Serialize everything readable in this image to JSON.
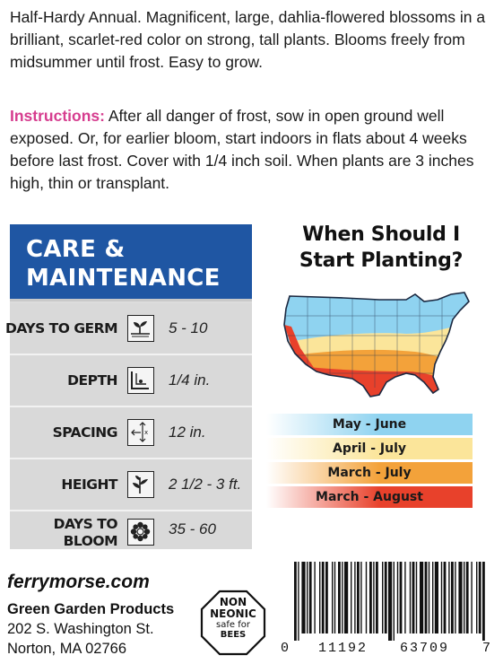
{
  "description": "Half-Hardy Annual. Magnificent, large, dahlia-flowered blossoms in a brilliant, scarlet-red color on strong, tall plants. Blooms freely from midsummer until frost. Easy to grow.",
  "instructions": {
    "label": "Instructions:",
    "text": " After all danger of frost, sow in open ground well exposed. Or, for earlier bloom, start indoors in flats about 4 weeks before last frost. Cover with 1/4 inch soil. When plants are 3 inches high, thin or transplant."
  },
  "care": {
    "title_line1": "CARE &",
    "title_line2": "MAINTENANCE",
    "rows": [
      {
        "label": "DAYS TO GERM",
        "value": "5 - 10",
        "icon": "sprout-icon"
      },
      {
        "label": "DEPTH",
        "value": "1/4 in.",
        "icon": "depth-icon"
      },
      {
        "label": "SPACING",
        "value": "12 in.",
        "icon": "spacing-icon"
      },
      {
        "label": "HEIGHT",
        "value": "2 1/2 - 3 ft.",
        "icon": "plant-height-icon"
      },
      {
        "label_line1": "DAYS TO",
        "label_line2": "BLOOM",
        "value": "35 - 60",
        "icon": "flower-icon"
      }
    ]
  },
  "planting": {
    "title_line1": "When Should I",
    "title_line2": "Start Planting?",
    "zones": [
      {
        "label": "May - June",
        "color": "#8fd3f0"
      },
      {
        "label": "April - July",
        "color": "#fbe59a"
      },
      {
        "label": "March - July",
        "color": "#f3a23a"
      },
      {
        "label": "March - August",
        "color": "#e8412b"
      }
    ]
  },
  "footer": {
    "website": "ferrymorse.com",
    "company_name": "Green Garden Products",
    "address_line1": "202 S. Washington St.",
    "address_line2": "Norton, MA 02766",
    "badge_line1": "NON",
    "badge_line2": "NEONIC",
    "badge_line3": "safe for",
    "badge_line4": "BEES"
  },
  "barcode": {
    "lead_digit": "0",
    "group1": "11192",
    "group2": "63709",
    "check_digit": "7"
  }
}
